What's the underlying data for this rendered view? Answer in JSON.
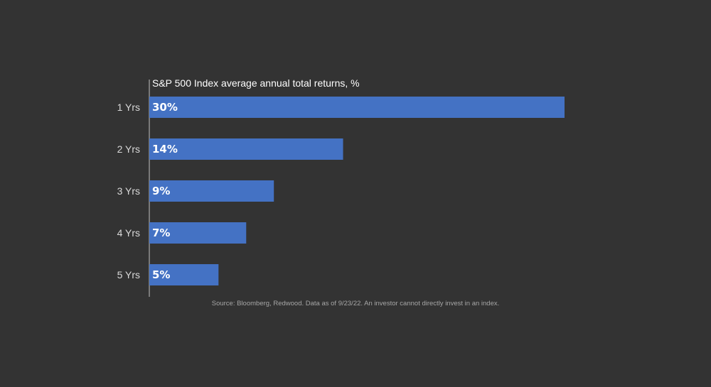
{
  "chart_data": {
    "type": "bar",
    "orientation": "horizontal",
    "title": "S&P 500 Index average annual total returns, %",
    "categories": [
      "1 Yrs",
      "2 Yrs",
      "3 Yrs",
      "4 Yrs",
      "5 Yrs"
    ],
    "values": [
      30,
      14,
      9,
      7,
      5
    ],
    "value_labels": [
      "30%",
      "14%",
      "9%",
      "7%",
      "5%"
    ],
    "xlabel": "",
    "ylabel": "",
    "xlim": [
      0,
      35
    ],
    "grid": false,
    "legend": "none",
    "source": "Source: Bloomberg, Redwood. Data as of 9/23/22. An investor cannot directly invest in an index."
  },
  "colors": {
    "background": "#333333",
    "bar": "#4472C4",
    "axis": "#bfbfbf",
    "text": "#ffffff",
    "category_text": "#d9d9d9",
    "source_text": "#a6a6a6"
  }
}
